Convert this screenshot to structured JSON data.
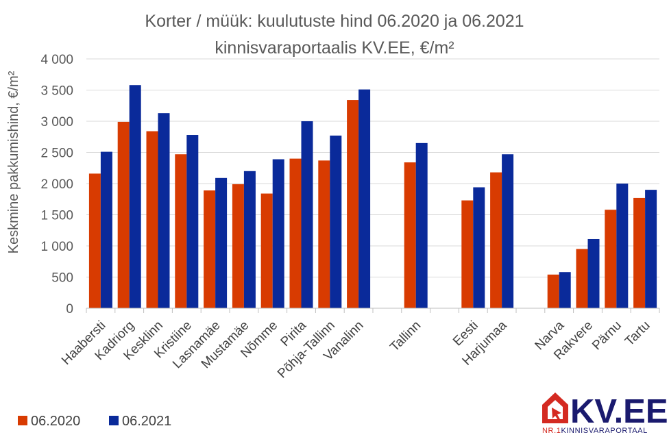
{
  "chart_data": {
    "type": "bar",
    "title_line1": "Korter / müük: kuulutuste hind 06.2020 ja 06.2021",
    "title_line2": "kinnisvaraportaalis KV.EE, €/m²",
    "ylabel": "Keskmine pakkumishind, €/m²",
    "xlabel": "",
    "ylim": [
      0,
      4000
    ],
    "yticks": [
      {
        "value": 0,
        "label": "0"
      },
      {
        "value": 500,
        "label": "500"
      },
      {
        "value": 1000,
        "label": "1 000"
      },
      {
        "value": 1500,
        "label": "1 500"
      },
      {
        "value": 2000,
        "label": "2 000"
      },
      {
        "value": 2500,
        "label": "2 500"
      },
      {
        "value": 3000,
        "label": "3 000"
      },
      {
        "value": 3500,
        "label": "3 500"
      },
      {
        "value": 4000,
        "label": "4 000"
      }
    ],
    "grid": true,
    "legend_position": "bottom-left",
    "categories": [
      "Haabersti",
      "Kadriorg",
      "Kesklinn",
      "Kristiine",
      "Lasnamäe",
      "Mustamäe",
      "Nõmme",
      "Pirita",
      "Põhja-Tallinn",
      "Vanalinn",
      "",
      "Tallinn",
      "",
      "Eesti",
      "Harjumaa",
      "",
      "Narva",
      "Rakvere",
      "Pärnu",
      "Tartu"
    ],
    "series": [
      {
        "name": "06.2020",
        "color": "#d83b01",
        "values": [
          2160,
          2990,
          2840,
          2470,
          1890,
          1990,
          1840,
          2400,
          2370,
          3340,
          null,
          2340,
          null,
          1730,
          2180,
          null,
          540,
          950,
          1580,
          1770
        ]
      },
      {
        "name": "06.2021",
        "color": "#0a2a9a",
        "values": [
          2510,
          3580,
          3130,
          2780,
          2090,
          2200,
          2390,
          3000,
          2770,
          3510,
          null,
          2650,
          null,
          1940,
          2470,
          null,
          580,
          1110,
          2000,
          1900
        ]
      }
    ]
  },
  "logo": {
    "name": "KV.EE",
    "tagline_prefix": "NR.1",
    "tagline": "KINNISVARAPORTAAL",
    "house_color": "#d42a21",
    "text_color": "#1a1a6e"
  }
}
